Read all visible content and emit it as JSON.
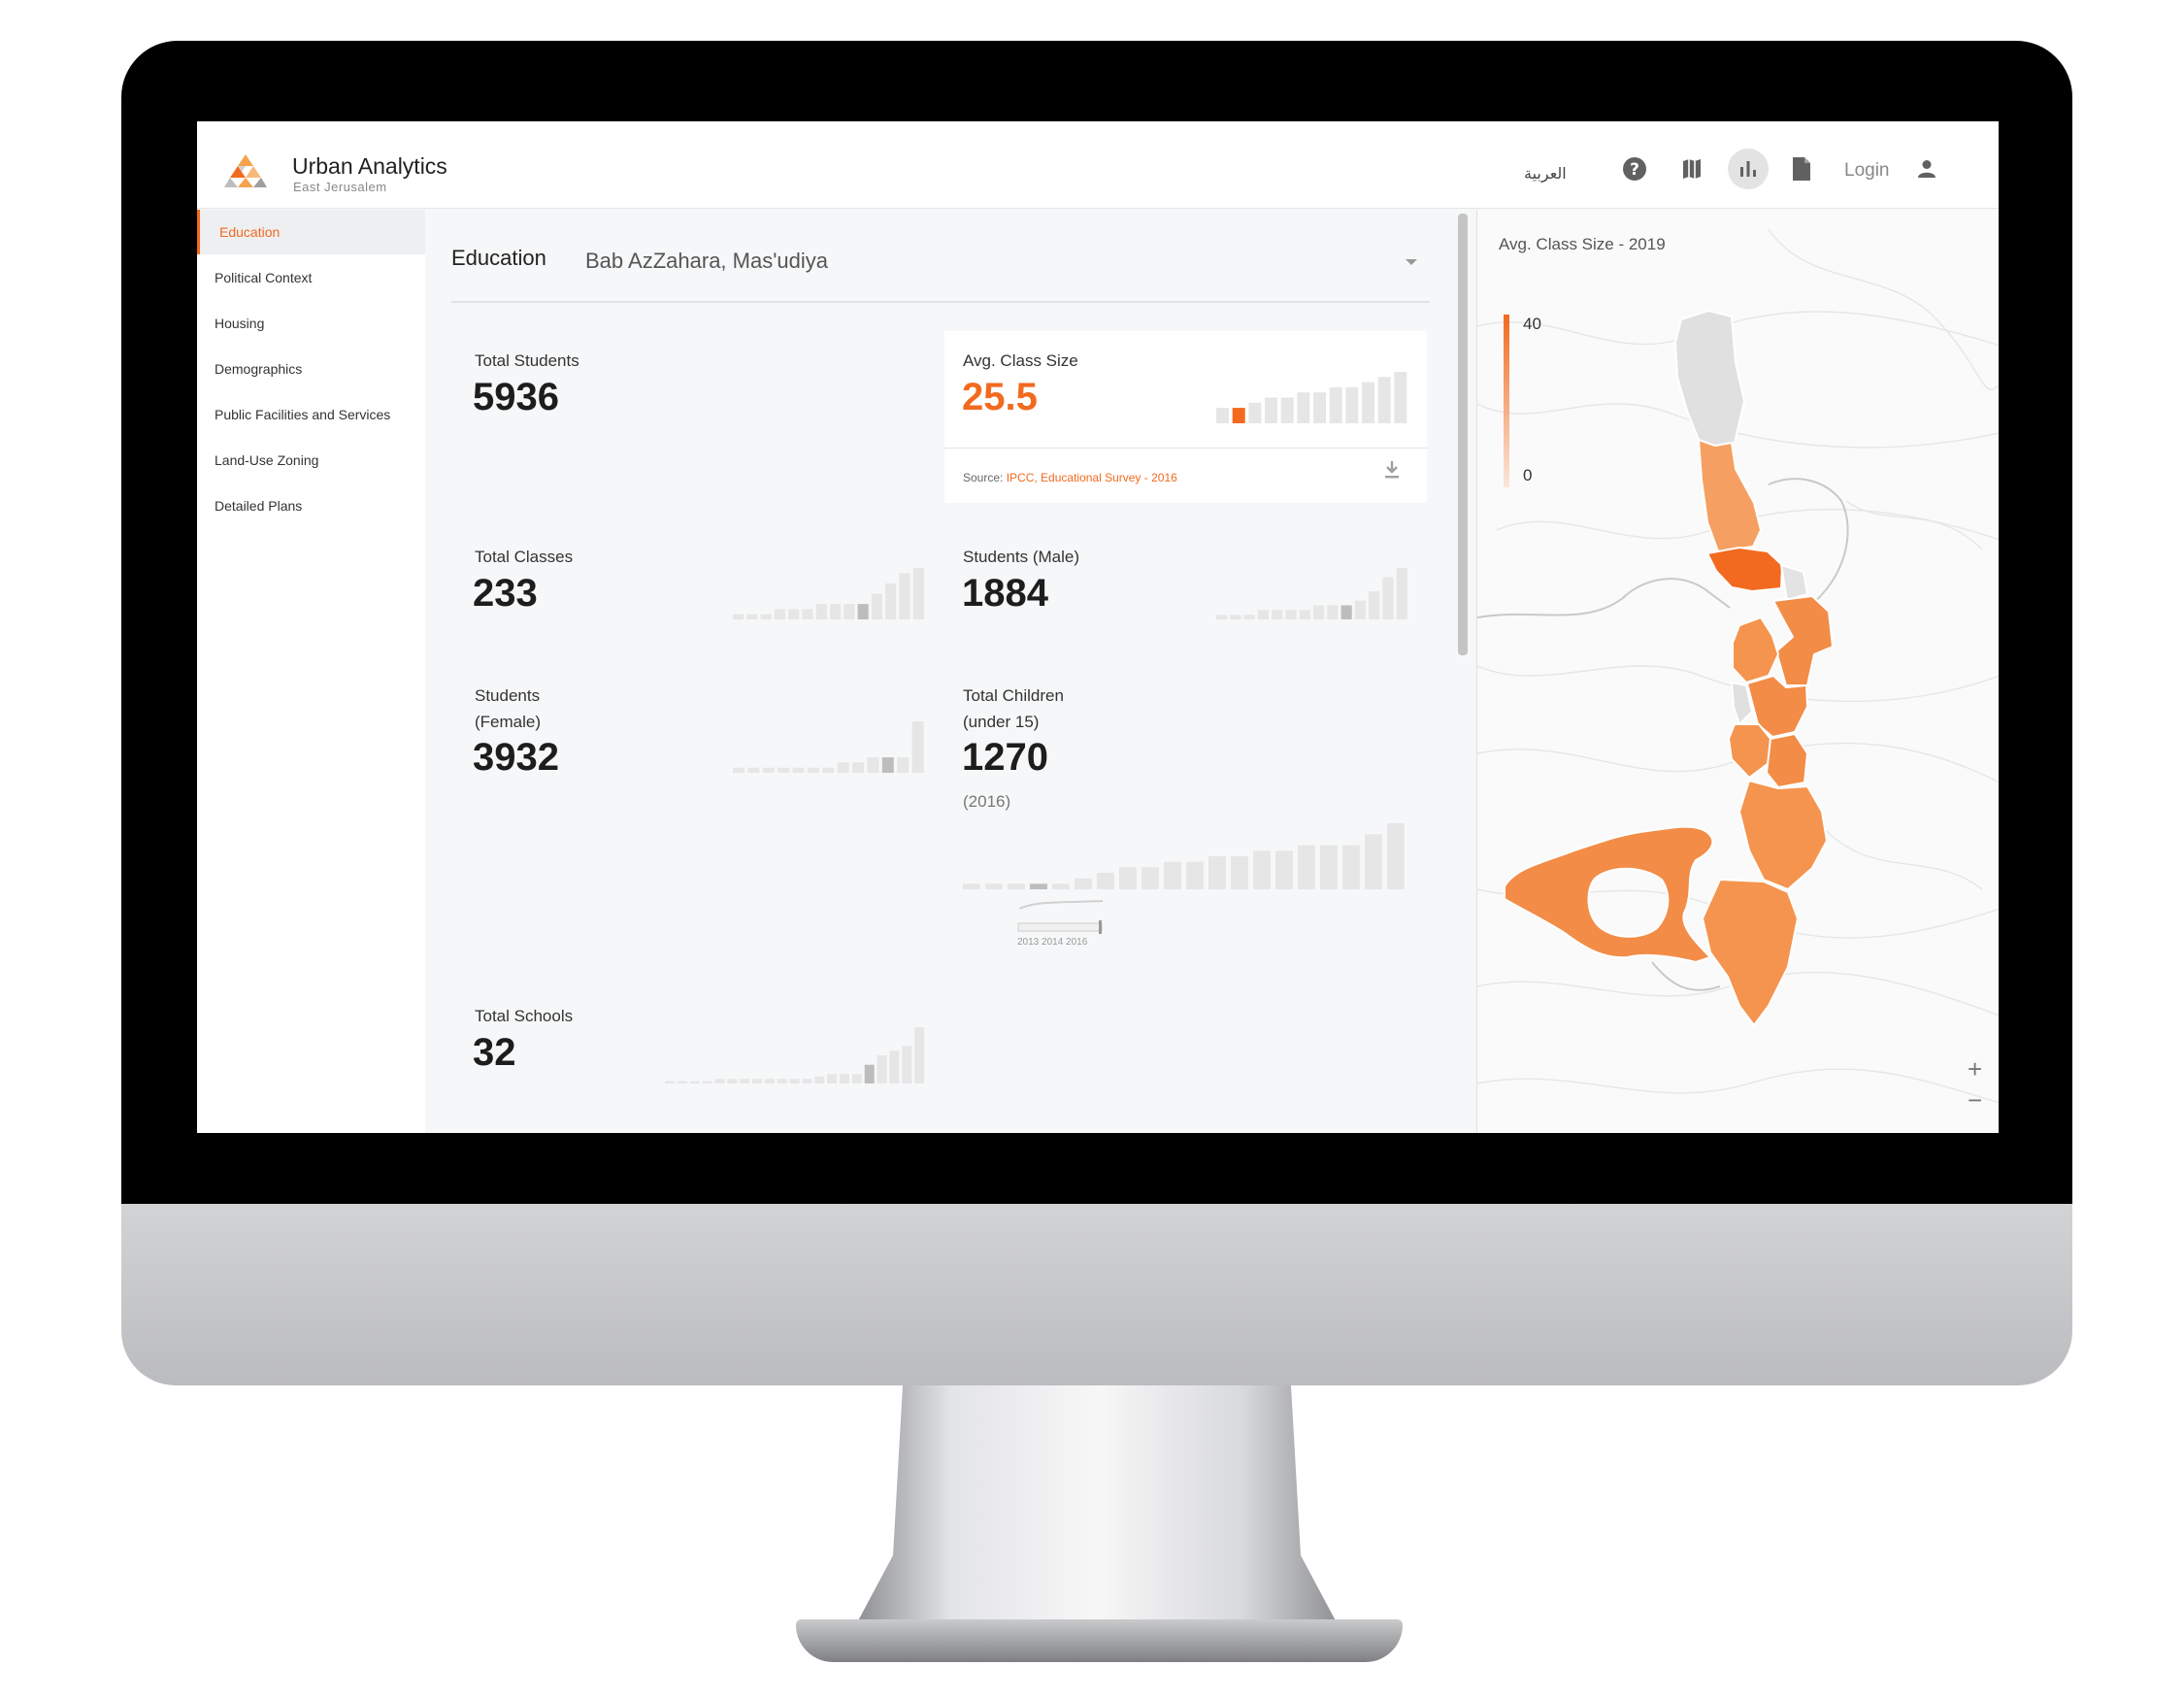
{
  "header": {
    "title": "Urban Analytics",
    "subtitle": "East Jerusalem",
    "language_link": "العربية",
    "login_label": "Login",
    "icons": [
      "help-icon",
      "map-icon",
      "bar-chart-icon",
      "document-icon",
      "user-icon"
    ]
  },
  "sidebar": {
    "items": [
      {
        "label": "Education",
        "active": true
      },
      {
        "label": "Political Context"
      },
      {
        "label": "Housing"
      },
      {
        "label": "Demographics"
      },
      {
        "label": "Public Facilities and Services"
      },
      {
        "label": "Land-Use Zoning"
      },
      {
        "label": "Detailed Plans"
      }
    ]
  },
  "main": {
    "title": "Education",
    "area_select": "Bab AzZahara, Mas'udiya",
    "cards": {
      "total_students": {
        "label": "Total Students",
        "value": "5936"
      },
      "avg_class_size": {
        "label": "Avg. Class Size",
        "value": "25.5",
        "source_prefix": "Source:",
        "source_link": "IPCC, Educational Survey - 2016"
      },
      "total_classes": {
        "label": "Total Classes",
        "value": "233"
      },
      "students_male": {
        "label": "Students (Male)",
        "value": "1884"
      },
      "students_female": {
        "label": "Students\n(Female)",
        "value": "3932"
      },
      "total_children": {
        "label": "Total Children\n(under 15)",
        "value": "1270",
        "note": "(2016)",
        "slider_label": "2013 2014 2016"
      },
      "total_schools": {
        "label": "Total Schools",
        "value": "32"
      }
    }
  },
  "map": {
    "title": "Avg. Class Size - 2019",
    "legend_max": "40",
    "legend_min": "0",
    "zoom_in": "+",
    "zoom_out": "−"
  },
  "colors": {
    "accent": "#f26a1f",
    "bar": "#e6e6e6",
    "bar_selected": "#bdbdbd"
  },
  "chart_data": [
    {
      "type": "bar",
      "name": "avg-class-size-trend",
      "values": [
        3,
        3,
        4,
        5,
        5,
        6,
        6,
        7,
        7,
        8,
        9,
        10
      ],
      "selected_index": 1,
      "highlight": "accent"
    },
    {
      "type": "bar",
      "name": "total-classes-trend",
      "values": [
        1,
        1,
        1,
        2,
        2,
        2,
        3,
        3,
        3,
        3,
        5,
        7,
        9,
        10
      ],
      "selected_index": 9
    },
    {
      "type": "bar",
      "name": "students-male-trend",
      "values": [
        1,
        1,
        1,
        2,
        2,
        2,
        2,
        3,
        3,
        3,
        4,
        6,
        9,
        11
      ],
      "selected_index": 9
    },
    {
      "type": "bar",
      "name": "students-female-trend",
      "values": [
        1,
        1,
        1,
        1,
        1,
        1,
        1,
        2,
        2,
        3,
        3,
        3,
        10
      ],
      "selected_index": 10
    },
    {
      "type": "bar",
      "name": "total-children-trend",
      "values": [
        1,
        1,
        1,
        1,
        1,
        2,
        3,
        4,
        4,
        5,
        5,
        6,
        6,
        7,
        7,
        8,
        8,
        8,
        10,
        12
      ],
      "selected_index": 3
    },
    {
      "type": "bar",
      "name": "total-schools-trend",
      "values": [
        0.5,
        0.5,
        0.5,
        0.5,
        1,
        1,
        1,
        1,
        1,
        1,
        1,
        1,
        1.5,
        2,
        2,
        2,
        4,
        6,
        7,
        8,
        12
      ],
      "selected_index": 16
    }
  ]
}
